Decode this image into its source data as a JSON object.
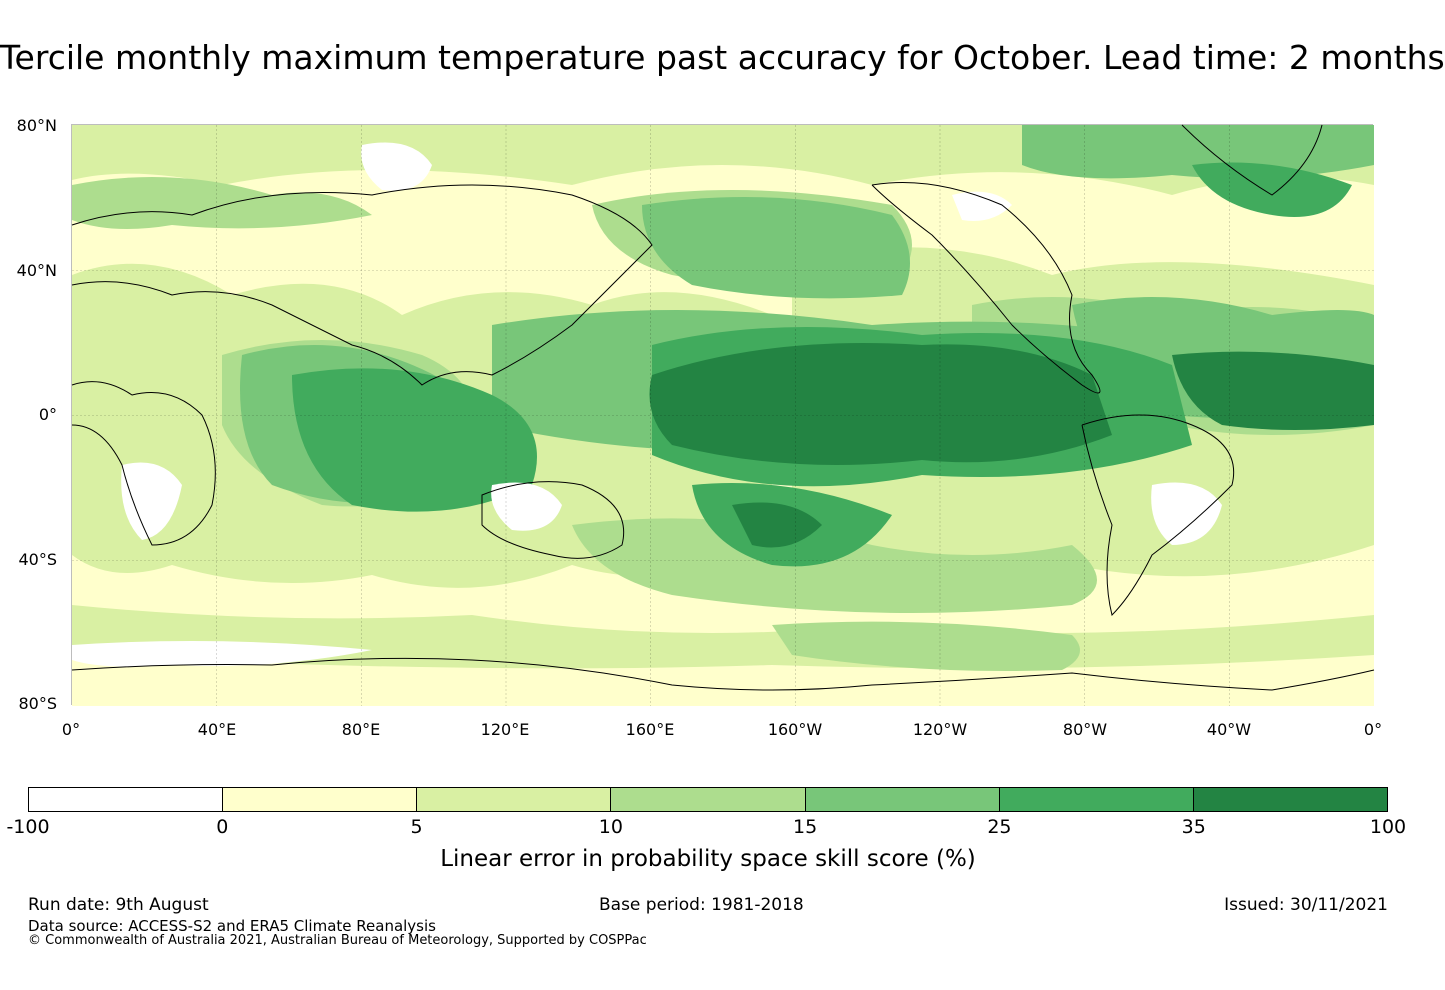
{
  "title": "Tercile monthly maximum temperature past accuracy for October. Lead time: 2 months",
  "map": {
    "lat_labels": [
      "80°N",
      "40°N",
      "0°",
      "40°S",
      "80°S"
    ],
    "lon_labels": [
      "0°",
      "40°E",
      "80°E",
      "120°E",
      "160°E",
      "160°W",
      "120°W",
      "80°W",
      "40°W",
      "0°"
    ],
    "background_color": "#ffffcc"
  },
  "colorbar": {
    "ticks": [
      "-100",
      "0",
      "5",
      "10",
      "15",
      "25",
      "35",
      "100"
    ],
    "colors": [
      "#ffffff",
      "#ffffcc",
      "#d9f0a3",
      "#addd8e",
      "#78c679",
      "#41ab5d",
      "#238443"
    ],
    "label": "Linear error in probability space skill score (%)"
  },
  "footer": {
    "run_date": "Run date: 9th August",
    "base_period": "Base period: 1981-2018",
    "issued": "Issued: 30/11/2021",
    "data_source": "Data source: ACCESS-S2 and ERA5 Climate Reanalysis",
    "copyright": "© Commonwealth of Australia 2021, Australian Bureau of Meteorology, Supported by COSPPac"
  }
}
